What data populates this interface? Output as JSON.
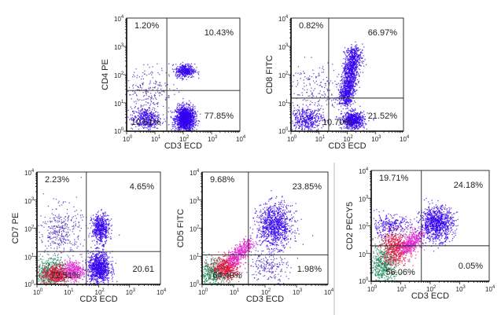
{
  "chart_data": [
    {
      "type": "scatter",
      "xlabel": "CD3  ECD",
      "ylabel": "CD4  PE",
      "axis_scale": "log",
      "xlim_exp": [
        0,
        4
      ],
      "ylim_exp": [
        0,
        4
      ],
      "gate_exp": [
        1.42,
        1.44
      ],
      "quadrants": {
        "ul": "1.20%",
        "ur": "10.43%",
        "ll": "10.51%",
        "lr": "77.85%"
      },
      "clusters": [
        {
          "cx": 2.05,
          "cy": 0.45,
          "sx": 0.17,
          "sy": 0.22,
          "n": 1500,
          "color": "#3300ee"
        },
        {
          "cx": 2.05,
          "cy": 2.15,
          "sx": 0.17,
          "sy": 0.12,
          "n": 400,
          "color": "#3300ee"
        },
        {
          "cx": 0.65,
          "cy": 0.45,
          "sx": 0.25,
          "sy": 0.2,
          "n": 450,
          "color": "#3300ee"
        },
        {
          "cx": 0.8,
          "cy": 1.5,
          "sx": 0.4,
          "sy": 0.4,
          "n": 200,
          "color": "#4422aa"
        }
      ]
    },
    {
      "type": "scatter",
      "xlabel": "CD3  ECD",
      "ylabel": "CD8  FITC",
      "axis_scale": "log",
      "xlim_exp": [
        0,
        4
      ],
      "ylim_exp": [
        0,
        4
      ],
      "gate_exp": [
        1.34,
        1.17
      ],
      "quadrants": {
        "ul": "0.82%",
        "ur": "66.97%",
        "ll": "10.70%",
        "lr": "21.52%"
      },
      "clusters": [
        {
          "x0": 1.9,
          "y0": 1.0,
          "x1": 2.25,
          "y1": 2.9,
          "sx": 0.14,
          "sy": 0.12,
          "n": 1400,
          "color": "#3300ee"
        },
        {
          "cx": 2.2,
          "cy": 0.4,
          "sx": 0.2,
          "sy": 0.15,
          "n": 700,
          "color": "#3300ee"
        },
        {
          "cx": 0.55,
          "cy": 0.45,
          "sx": 0.3,
          "sy": 0.2,
          "n": 450,
          "color": "#3300ee"
        },
        {
          "cx": 0.8,
          "cy": 1.5,
          "sx": 0.5,
          "sy": 0.5,
          "n": 180,
          "color": "#4422aa"
        }
      ]
    },
    {
      "type": "scatter",
      "xlabel": "CD3  ECD",
      "ylabel": "CD7  PE",
      "axis_scale": "log",
      "xlim_exp": [
        0,
        4
      ],
      "ylim_exp": [
        0,
        4
      ],
      "gate_exp": [
        1.6,
        1.17
      ],
      "quadrants": {
        "ul": "2.23%",
        "ur": "4.65%",
        "ll": "72.51%",
        "lr": "20.61"
      },
      "clusters": [
        {
          "cx": 0.75,
          "cy": 1.9,
          "sx": 0.35,
          "sy": 0.45,
          "n": 350,
          "color": "#4422bb"
        },
        {
          "cx": 0.4,
          "cy": 0.45,
          "sx": 0.3,
          "sy": 0.25,
          "n": 600,
          "color": "#1a8a5a"
        },
        {
          "cx": 0.6,
          "cy": 0.35,
          "sx": 0.22,
          "sy": 0.18,
          "n": 500,
          "color": "#e0103a"
        },
        {
          "cx": 1.15,
          "cy": 0.5,
          "sx": 0.18,
          "sy": 0.18,
          "n": 400,
          "color": "#e020d0"
        },
        {
          "cx": 2.0,
          "cy": 0.6,
          "sx": 0.18,
          "sy": 0.28,
          "n": 1000,
          "color": "#3300ee"
        },
        {
          "cx": 2.05,
          "cy": 2.0,
          "sx": 0.14,
          "sy": 0.25,
          "n": 550,
          "color": "#3300ee"
        }
      ]
    },
    {
      "type": "scatter",
      "xlabel": "CD3  ECD",
      "ylabel": "CD5  FITC",
      "axis_scale": "log",
      "xlim_exp": [
        0,
        4
      ],
      "ylim_exp": [
        0,
        4
      ],
      "gate_exp": [
        1.47,
        1.05
      ],
      "quadrants": {
        "ul": "9.68%",
        "ur": "23.85%",
        "ll": "64.49%",
        "lr": "1.98%"
      },
      "clusters": [
        {
          "cx": 0.35,
          "cy": 0.4,
          "sx": 0.25,
          "sy": 0.25,
          "n": 500,
          "color": "#1a8a5a"
        },
        {
          "cx": 0.75,
          "cy": 0.6,
          "sx": 0.22,
          "sy": 0.2,
          "n": 550,
          "color": "#e0103a"
        },
        {
          "x0": 0.9,
          "y0": 0.8,
          "x1": 1.5,
          "y1": 1.5,
          "sx": 0.12,
          "sy": 0.12,
          "n": 450,
          "color": "#e020d0"
        },
        {
          "cx": 2.3,
          "cy": 2.1,
          "sx": 0.28,
          "sy": 0.38,
          "n": 1000,
          "color": "#3300ee"
        },
        {
          "cx": 2.1,
          "cy": 0.7,
          "sx": 0.3,
          "sy": 0.3,
          "n": 200,
          "color": "#4422bb"
        }
      ]
    },
    {
      "type": "scatter",
      "xlabel": "CD3  ECD",
      "ylabel": "CD2  PECY5",
      "axis_scale": "log",
      "xlim_exp": [
        0,
        4
      ],
      "ylim_exp": [
        0,
        4
      ],
      "gate_exp": [
        1.7,
        1.28
      ],
      "quadrants": {
        "ul": "19.71%",
        "ur": "24.18%",
        "ll": "56.06%",
        "lr": "0.05%"
      },
      "clusters": [
        {
          "cx": 0.6,
          "cy": 2.0,
          "sx": 0.35,
          "sy": 0.2,
          "n": 300,
          "color": "#3300ee"
        },
        {
          "cx": 0.4,
          "cy": 0.6,
          "sx": 0.25,
          "sy": 0.35,
          "n": 550,
          "color": "#1a8a5a"
        },
        {
          "cx": 0.8,
          "cy": 1.2,
          "sx": 0.25,
          "sy": 0.3,
          "n": 600,
          "color": "#e0103a"
        },
        {
          "x0": 1.1,
          "y0": 1.1,
          "x1": 1.6,
          "y1": 1.7,
          "sx": 0.14,
          "sy": 0.14,
          "n": 450,
          "color": "#e020d0"
        },
        {
          "cx": 2.2,
          "cy": 2.1,
          "sx": 0.28,
          "sy": 0.3,
          "n": 1000,
          "color": "#3300ee"
        }
      ]
    }
  ]
}
